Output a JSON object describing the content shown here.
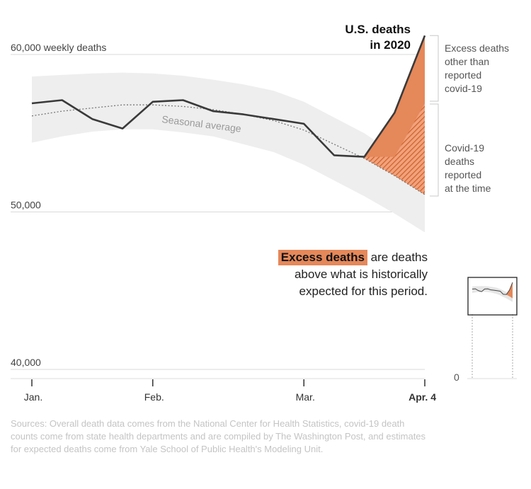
{
  "chart_data": {
    "type": "line",
    "title": "U.S. deaths in 2020",
    "title_lines": [
      "U.S. deaths",
      "in 2020"
    ],
    "ylabel": "weekly deaths",
    "ylim": [
      40000,
      61000
    ],
    "y_ticks": [
      {
        "value": 60000,
        "label": "60,000 weekly deaths"
      },
      {
        "value": 50000,
        "label": "50,000"
      },
      {
        "value": 40000,
        "label": "40,000"
      }
    ],
    "x_ticks": [
      {
        "label": "Jan.",
        "week": 0
      },
      {
        "label": "Feb.",
        "week": 4
      },
      {
        "label": "Mar.",
        "week": 9
      },
      {
        "label": "Apr. 4",
        "week": 13
      }
    ],
    "weeks": [
      0,
      1,
      2,
      3,
      4,
      5,
      6,
      7,
      8,
      9,
      10,
      11,
      12,
      13
    ],
    "series": [
      {
        "name": "",
        "role": "observed",
        "color": "#3a3a3a",
        "values": [
          56900,
          57100,
          55900,
          55300,
          57000,
          57100,
          56400,
          56200,
          55900,
          55600,
          53600,
          53500,
          56300,
          61200
        ]
      },
      {
        "name": "Seasonal average",
        "role": "expected",
        "color": "#777777",
        "values": [
          56100,
          56400,
          56600,
          56800,
          56800,
          56700,
          56500,
          56200,
          55800,
          55200,
          54300,
          53400,
          52300,
          51100
        ]
      },
      {
        "name": "",
        "role": "range_high",
        "values": [
          58600,
          58700,
          58800,
          58850,
          58800,
          58650,
          58400,
          58100,
          57700,
          57000,
          56000,
          55000,
          53700,
          52200
        ]
      },
      {
        "name": "",
        "role": "range_low",
        "values": [
          54400,
          54800,
          55100,
          55250,
          55250,
          55050,
          54800,
          54300,
          53800,
          53000,
          52000,
          51000,
          49900,
          48700
        ]
      },
      {
        "name": "",
        "role": "covid_reported",
        "values": [
          null,
          null,
          null,
          null,
          null,
          null,
          null,
          null,
          null,
          null,
          null,
          53500,
          53500,
          56900
        ]
      }
    ],
    "colors": {
      "excess": "#e5885a",
      "covid_hatch": "#cf5f27",
      "band": "#eeeeee",
      "grid": "#d9d9d9"
    },
    "annotations": {
      "seasonal": "Seasonal average",
      "excess_other": [
        "Excess deaths",
        "other than",
        "reported",
        "covid-19"
      ],
      "covid_reported": [
        "Covid-19",
        "deaths",
        "reported",
        "at the time"
      ]
    },
    "inset_label": "0",
    "grid": true,
    "legend": "none"
  },
  "explainer": {
    "highlight": "Excess deaths",
    "rest": " are deaths above what is historically expected for this period."
  },
  "sources": "Sources: Overall death data comes from the National Center for Health Statistics, covid-19 death counts come from state health departments and are compiled by The Washington Post, and estimates for expected deaths come from Yale School of Public Health's Modeling Unit."
}
